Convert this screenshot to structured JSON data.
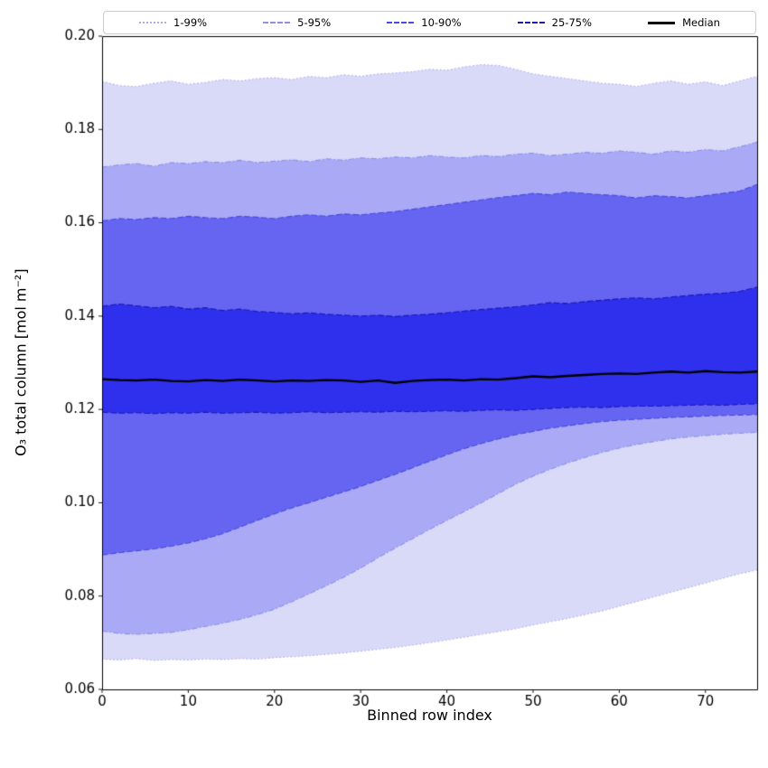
{
  "chart_data": {
    "type": "area",
    "title": "",
    "xlabel": "Binned row index",
    "ylabel": "O₃ total column [mol m⁻²]",
    "xlim": [
      0,
      76
    ],
    "ylim": [
      0.06,
      0.2
    ],
    "xticks": [
      0,
      10,
      20,
      30,
      40,
      50,
      60,
      70
    ],
    "yticks": [
      0.06,
      0.08,
      0.1,
      0.12,
      0.14,
      0.16,
      0.18,
      0.2
    ],
    "grid": false,
    "legend_position": "top",
    "frame_color": "#000000",
    "background_color": "#ffffff",
    "x": [
      0,
      2,
      4,
      6,
      8,
      10,
      12,
      14,
      16,
      18,
      20,
      22,
      24,
      26,
      28,
      30,
      32,
      34,
      36,
      38,
      40,
      42,
      44,
      46,
      48,
      50,
      52,
      54,
      56,
      58,
      60,
      62,
      64,
      66,
      68,
      70,
      72,
      74,
      76
    ],
    "percentiles": {
      "p1": [
        0.0665,
        0.0663,
        0.0666,
        0.0662,
        0.0664,
        0.0663,
        0.0665,
        0.0664,
        0.0666,
        0.0665,
        0.0668,
        0.067,
        0.0672,
        0.0675,
        0.0678,
        0.0682,
        0.0686,
        0.069,
        0.0695,
        0.07,
        0.0706,
        0.0712,
        0.0718,
        0.0724,
        0.073,
        0.0738,
        0.0745,
        0.0752,
        0.076,
        0.0768,
        0.0778,
        0.0788,
        0.0798,
        0.0808,
        0.0818,
        0.0828,
        0.0838,
        0.0848,
        0.0856
      ],
      "p5": [
        0.0725,
        0.072,
        0.0718,
        0.072,
        0.0722,
        0.0728,
        0.0735,
        0.0742,
        0.075,
        0.076,
        0.0772,
        0.0788,
        0.0805,
        0.0822,
        0.084,
        0.086,
        0.0882,
        0.0903,
        0.0923,
        0.0943,
        0.0962,
        0.0981,
        0.1,
        0.102,
        0.104,
        0.1057,
        0.1072,
        0.1085,
        0.1097,
        0.1108,
        0.1117,
        0.1125,
        0.1131,
        0.1137,
        0.1141,
        0.1144,
        0.1147,
        0.1149,
        0.1151
      ],
      "p10": [
        0.0888,
        0.0893,
        0.0897,
        0.0901,
        0.0907,
        0.0914,
        0.0923,
        0.0934,
        0.0948,
        0.0962,
        0.0976,
        0.0989,
        0.1,
        0.1012,
        0.1023,
        0.1035,
        0.1048,
        0.1061,
        0.1075,
        0.1089,
        0.1103,
        0.1116,
        0.1127,
        0.1137,
        0.1146,
        0.1153,
        0.116,
        0.1165,
        0.117,
        0.1174,
        0.1177,
        0.1179,
        0.1181,
        0.1183,
        0.1184,
        0.1186,
        0.1187,
        0.1188,
        0.1189
      ],
      "p25": [
        0.1194,
        0.1192,
        0.1193,
        0.1191,
        0.1193,
        0.1192,
        0.1194,
        0.1192,
        0.1193,
        0.1194,
        0.1192,
        0.1193,
        0.1195,
        0.1193,
        0.1194,
        0.1195,
        0.1194,
        0.1196,
        0.1195,
        0.1196,
        0.1197,
        0.1196,
        0.1198,
        0.1199,
        0.1198,
        0.12,
        0.1202,
        0.1204,
        0.1205,
        0.1204,
        0.1206,
        0.1207,
        0.1207,
        0.1208,
        0.1209,
        0.121,
        0.1209,
        0.1211,
        0.1212
      ],
      "p50": [
        0.1265,
        0.1263,
        0.1262,
        0.1264,
        0.1261,
        0.126,
        0.1263,
        0.1261,
        0.1264,
        0.1262,
        0.126,
        0.1262,
        0.1261,
        0.1263,
        0.1262,
        0.1259,
        0.1262,
        0.1257,
        0.1261,
        0.1263,
        0.1264,
        0.1262,
        0.1265,
        0.1264,
        0.1267,
        0.1271,
        0.1269,
        0.1272,
        0.1274,
        0.1276,
        0.1277,
        0.1276,
        0.1279,
        0.1281,
        0.1279,
        0.1282,
        0.128,
        0.1279,
        0.1281
      ],
      "p75": [
        0.1421,
        0.1426,
        0.1422,
        0.1418,
        0.1421,
        0.1415,
        0.1418,
        0.1412,
        0.1415,
        0.141,
        0.1408,
        0.1405,
        0.1407,
        0.1404,
        0.1402,
        0.14,
        0.1402,
        0.1399,
        0.1402,
        0.1404,
        0.1407,
        0.1411,
        0.1414,
        0.1417,
        0.142,
        0.1424,
        0.1429,
        0.1427,
        0.1431,
        0.1434,
        0.1437,
        0.1439,
        0.1437,
        0.1441,
        0.1444,
        0.1447,
        0.1449,
        0.1453,
        0.1462
      ],
      "p90": [
        0.1604,
        0.1609,
        0.1607,
        0.1611,
        0.1609,
        0.1614,
        0.1611,
        0.1609,
        0.1614,
        0.1612,
        0.1609,
        0.1614,
        0.1617,
        0.1614,
        0.1619,
        0.1617,
        0.1621,
        0.1624,
        0.1629,
        0.1634,
        0.1639,
        0.1644,
        0.1649,
        0.1654,
        0.1658,
        0.1663,
        0.166,
        0.1666,
        0.1663,
        0.166,
        0.1658,
        0.1653,
        0.1658,
        0.1656,
        0.1653,
        0.1658,
        0.1663,
        0.1668,
        0.1682
      ],
      "p95": [
        0.1719,
        0.1724,
        0.1727,
        0.1721,
        0.1729,
        0.1727,
        0.1731,
        0.1729,
        0.1734,
        0.1729,
        0.1732,
        0.1735,
        0.1731,
        0.1737,
        0.1734,
        0.1739,
        0.1737,
        0.1741,
        0.1739,
        0.1744,
        0.1741,
        0.1739,
        0.1744,
        0.1742,
        0.1747,
        0.1749,
        0.1744,
        0.1747,
        0.1751,
        0.1749,
        0.1754,
        0.1751,
        0.1747,
        0.1754,
        0.1751,
        0.1757,
        0.1754,
        0.1763,
        0.1773
      ],
      "p99": [
        0.1903,
        0.1894,
        0.1892,
        0.1899,
        0.1904,
        0.1897,
        0.1901,
        0.1907,
        0.1904,
        0.1909,
        0.1911,
        0.1907,
        0.1914,
        0.1911,
        0.1917,
        0.1914,
        0.1919,
        0.1921,
        0.1924,
        0.1929,
        0.1927,
        0.1934,
        0.1939,
        0.1937,
        0.1929,
        0.1919,
        0.1914,
        0.1909,
        0.1904,
        0.1899,
        0.1897,
        0.1892,
        0.1899,
        0.1904,
        0.1897,
        0.1902,
        0.1894,
        0.1904,
        0.1914
      ]
    },
    "bands": [
      {
        "label": "1-99%",
        "lower_key": "p1",
        "upper_key": "p99",
        "fill": "#d9d9f8",
        "edge_color": "#adadee",
        "line_style": "dotted"
      },
      {
        "label": "5-95%",
        "lower_key": "p5",
        "upper_key": "p95",
        "fill": "#a9a9f5",
        "edge_color": "#8f8ff0",
        "line_style": "dashdot"
      },
      {
        "label": "10-90%",
        "lower_key": "p10",
        "upper_key": "p90",
        "fill": "#6565f2",
        "edge_color": "#4a4add",
        "line_style": "dashed"
      },
      {
        "label": "25-75%",
        "lower_key": "p25",
        "upper_key": "p75",
        "fill": "#2f2fee",
        "edge_color": "#1a1ab0",
        "line_style": "dashed"
      }
    ],
    "median": {
      "label": "Median",
      "color": "#000000",
      "values_key": "p50"
    }
  }
}
